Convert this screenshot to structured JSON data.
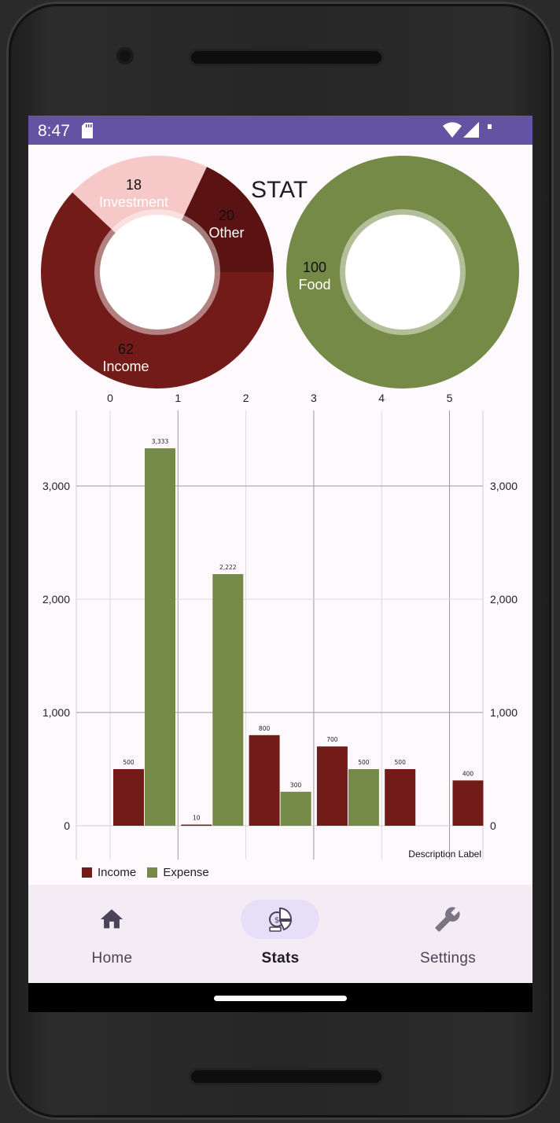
{
  "status_bar": {
    "time": "8:47"
  },
  "page": {
    "title": "STAT"
  },
  "income_pie": {
    "slices": [
      {
        "label": "Income",
        "value": 62,
        "color": "#731b19"
      },
      {
        "label": "Other",
        "value": 20,
        "color": "#f6c8c8"
      },
      {
        "label": "Investment",
        "value": 18,
        "color": "#5a1212"
      }
    ]
  },
  "expense_pie": {
    "slices": [
      {
        "label": "Food",
        "value": 100,
        "color": "#758a46"
      }
    ]
  },
  "chart_data": {
    "type": "bar",
    "categories": [
      "0",
      "1",
      "2",
      "3",
      "4",
      "5"
    ],
    "series": [
      {
        "name": "Income",
        "color": "#731b19",
        "values": [
          500,
          10,
          800,
          700,
          500,
          400
        ]
      },
      {
        "name": "Expense",
        "color": "#758a46",
        "values": [
          3333,
          2222,
          300,
          500,
          null,
          null
        ]
      }
    ],
    "value_labels": {
      "Income": [
        "500",
        "10",
        "800",
        "700",
        "500",
        "400"
      ],
      "Expense": [
        "3,333",
        "2,222",
        "300",
        "500",
        "",
        ""
      ]
    },
    "y_ticks": [
      "0",
      "1,000",
      "2,000",
      "3,000"
    ],
    "ylim": [
      0,
      3500
    ],
    "description": "Description Label",
    "legend": [
      "Income",
      "Expense"
    ],
    "legend_position": "bottom-left",
    "grid": true
  },
  "bottom_nav": {
    "items": [
      {
        "label": "Home",
        "icon": "home-icon",
        "active": false
      },
      {
        "label": "Stats",
        "icon": "stats-icon",
        "active": true
      },
      {
        "label": "Settings",
        "icon": "wrench-icon",
        "active": false
      }
    ]
  }
}
